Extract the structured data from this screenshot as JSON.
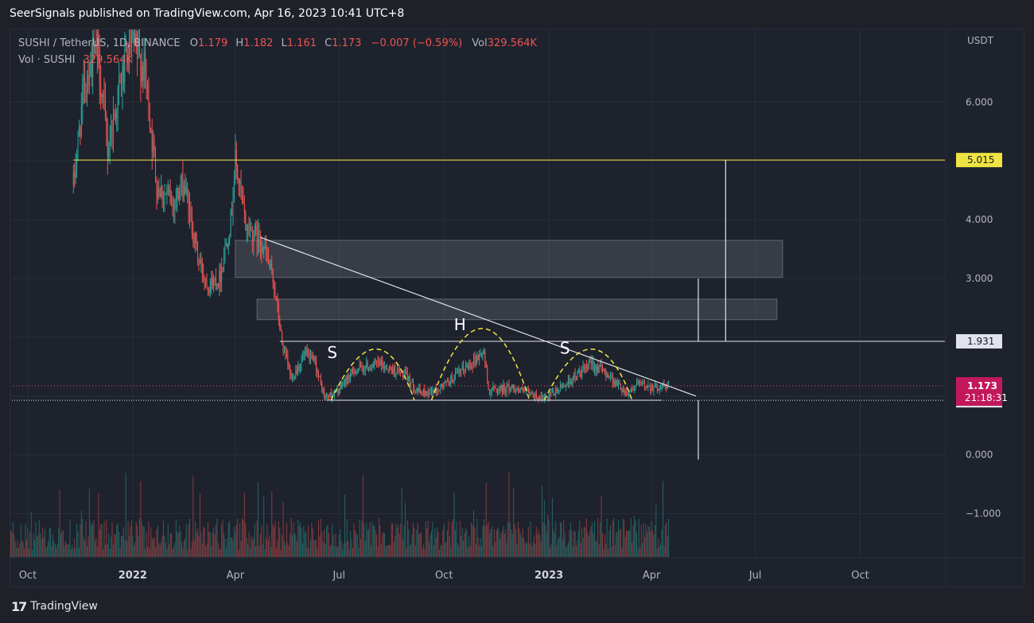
{
  "header": {
    "publisher_line": "SeerSignals published on TradingView.com, Apr 16, 2023 10:41 UTC+8"
  },
  "legend": {
    "symbol": "SUSHI / TetherUS, 1D, BINANCE",
    "open_label": "O",
    "open": "1.179",
    "high_label": "H",
    "high": "1.182",
    "low_label": "L",
    "low": "1.161",
    "close_label": "C",
    "close": "1.173",
    "change": "−0.007 (−0.59%)",
    "vol_label": "Vol",
    "vol": "329.564K",
    "vol_line_label": "Vol · SUSHI",
    "vol_line_value": "329.564K"
  },
  "footer": {
    "logo": "17",
    "brand": "TradingView"
  },
  "colors": {
    "background": "#1e222d",
    "grid": "#2a2e39",
    "up": "#26a69a",
    "down": "#ef5350",
    "horizontal_level": "#f0e442",
    "price_tag": "#c2185b",
    "text": "#b2b5be"
  },
  "chart_data": {
    "type": "candlestick",
    "symbol": "SUSHI / TetherUS",
    "interval": "1D",
    "exchange": "BINANCE",
    "currency": "USDT",
    "y_axis": {
      "unit_label": "USDT",
      "ticks": [
        6.0,
        4.0,
        3.0,
        0.0,
        -1.0
      ],
      "tick_labels": [
        "6.000",
        "4.000",
        "3.000",
        "0.000",
        "−1.000"
      ],
      "visible_range": [
        -1.75,
        7.25
      ]
    },
    "x_axis": {
      "ticks": [
        "2021-10-01",
        "2022-01-01",
        "2022-04-01",
        "2022-07-01",
        "2022-10-01",
        "2023-01-01",
        "2023-04-01",
        "2023-07-01",
        "2023-10-01"
      ],
      "tick_labels": [
        "Oct",
        "2022",
        "Apr",
        "Jul",
        "Oct",
        "2023",
        "Apr",
        "Jul",
        "Oct"
      ],
      "bold_labels": [
        "2022",
        "2023"
      ],
      "visible_range": [
        "2021-09-15",
        "2023-12-15"
      ]
    },
    "last_price": {
      "value": "1.173",
      "countdown": "21:18:31"
    },
    "price_levels": [
      {
        "value": 5.015,
        "label": "5.015",
        "style": "yellow",
        "start": "2021-11-10"
      },
      {
        "value": 1.931,
        "label": "1.931",
        "style": "white",
        "start": "2022-05-10"
      },
      {
        "value": 0.928,
        "label": "0.928",
        "style": "white-dotted",
        "start": "2021-09-15"
      }
    ],
    "neckline": {
      "start": "2022-06-20",
      "end": "2023-04-10",
      "value": 0.93
    },
    "trendline": {
      "start": [
        "2022-04-23",
        3.7
      ],
      "end": [
        "2023-05-10",
        1.0
      ]
    },
    "zones": [
      {
        "start": "2022-04-01",
        "end": "2023-07-25",
        "top": 3.65,
        "bottom": 3.02
      },
      {
        "start": "2022-04-20",
        "end": "2023-07-20",
        "top": 2.65,
        "bottom": 2.3
      }
    ],
    "measure_lines": [
      {
        "date": "2023-05-12",
        "from": 1.931,
        "to": 3.0
      },
      {
        "date": "2023-06-05",
        "from": 1.931,
        "to": 5.015
      },
      {
        "date": "2023-05-12",
        "from": 0.928,
        "to": -0.08
      }
    ],
    "pattern": {
      "name": "head and shoulders",
      "labels": [
        {
          "text": "S",
          "date": "2022-06-25",
          "value": 1.65
        },
        {
          "text": "H",
          "date": "2022-10-15",
          "value": 2.12
        },
        {
          "text": "S",
          "date": "2023-01-15",
          "value": 1.72
        }
      ],
      "arcs": [
        {
          "start": "2022-06-24",
          "peak": "2022-08-05",
          "end": "2022-09-05",
          "peak_value": 1.8
        },
        {
          "start": "2022-09-20",
          "peak": "2022-11-05",
          "end": "2022-12-15",
          "peak_value": 2.15
        },
        {
          "start": "2022-12-28",
          "peak": "2023-02-10",
          "end": "2023-03-15",
          "peak_value": 1.8
        }
      ]
    },
    "price_anchors": [
      [
        "2021-11-10",
        4.6
      ],
      [
        "2021-11-20",
        6.4
      ],
      [
        "2021-12-01",
        6.9
      ],
      [
        "2021-12-10",
        5.2
      ],
      [
        "2021-12-20",
        6.2
      ],
      [
        "2021-12-31",
        7.0
      ],
      [
        "2022-01-12",
        6.5
      ],
      [
        "2022-01-22",
        4.6
      ],
      [
        "2022-02-05",
        4.3
      ],
      [
        "2022-02-15",
        4.6
      ],
      [
        "2022-02-28",
        3.3
      ],
      [
        "2022-03-08",
        2.9
      ],
      [
        "2022-03-18",
        3.0
      ],
      [
        "2022-03-28",
        4.0
      ],
      [
        "2022-04-01",
        5.0
      ],
      [
        "2022-04-10",
        3.9
      ],
      [
        "2022-04-25",
        3.6
      ],
      [
        "2022-05-05",
        2.9
      ],
      [
        "2022-05-12",
        1.9
      ],
      [
        "2022-05-20",
        1.3
      ],
      [
        "2022-06-01",
        1.7
      ],
      [
        "2022-06-10",
        1.55
      ],
      [
        "2022-06-18",
        0.98
      ],
      [
        "2022-06-28",
        1.05
      ],
      [
        "2022-07-15",
        1.45
      ],
      [
        "2022-08-05",
        1.55
      ],
      [
        "2022-08-28",
        1.35
      ],
      [
        "2022-09-10",
        1.05
      ],
      [
        "2022-09-25",
        1.1
      ],
      [
        "2022-10-15",
        1.4
      ],
      [
        "2022-11-05",
        1.75
      ],
      [
        "2022-11-09",
        1.1
      ],
      [
        "2022-11-30",
        1.15
      ],
      [
        "2022-12-20",
        1.0
      ],
      [
        "2022-12-30",
        0.95
      ],
      [
        "2023-01-15",
        1.2
      ],
      [
        "2023-02-08",
        1.55
      ],
      [
        "2023-02-20",
        1.4
      ],
      [
        "2023-03-10",
        1.05
      ],
      [
        "2023-03-20",
        1.2
      ],
      [
        "2023-04-05",
        1.15
      ],
      [
        "2023-04-16",
        1.173
      ]
    ],
    "volume": {
      "pane_max_label": "329.564K",
      "note": "volume bars drawn in lower band, colored by candle direction"
    }
  }
}
